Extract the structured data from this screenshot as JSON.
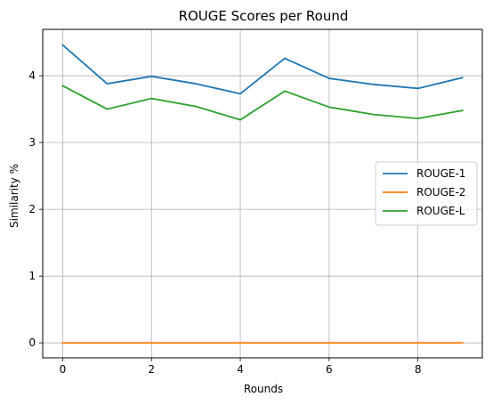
{
  "chart_data": {
    "type": "line",
    "title": "ROUGE Scores per Round",
    "xlabel": "Rounds",
    "ylabel": "Similarity %",
    "xlim": [
      -0.45,
      9.45
    ],
    "ylim": [
      -0.224,
      4.694
    ],
    "xticks": [
      0,
      2,
      4,
      6,
      8
    ],
    "yticks": [
      0,
      1,
      2,
      3,
      4
    ],
    "grid": true,
    "legend_position": "center-right",
    "x": [
      0,
      1,
      2,
      3,
      4,
      5,
      6,
      7,
      8,
      9
    ],
    "series": [
      {
        "name": "ROUGE-1",
        "color": "#1f77b4",
        "values": [
          4.46,
          3.88,
          3.99,
          3.88,
          3.73,
          4.26,
          3.96,
          3.87,
          3.81,
          3.97
        ]
      },
      {
        "name": "ROUGE-2",
        "color": "#ff7f0e",
        "values": [
          0,
          0,
          0,
          0,
          0,
          0,
          0,
          0,
          0,
          0
        ]
      },
      {
        "name": "ROUGE-L",
        "color": "#2ca02c",
        "values": [
          3.85,
          3.5,
          3.66,
          3.54,
          3.34,
          3.77,
          3.53,
          3.42,
          3.36,
          3.48
        ]
      }
    ]
  }
}
